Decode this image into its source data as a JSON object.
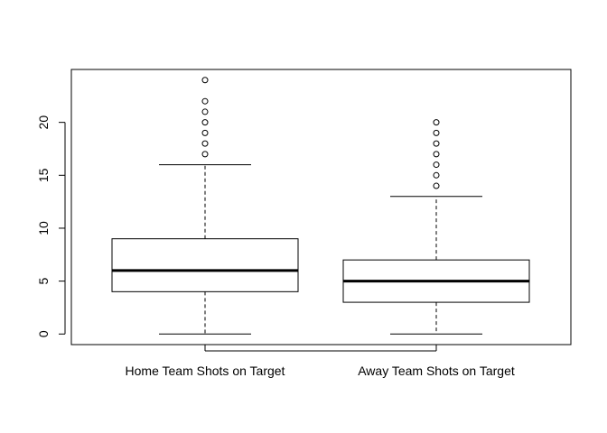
{
  "chart_data": {
    "type": "box",
    "categories": [
      "Home Team Shots on Target",
      "Away Team Shots on Target"
    ],
    "boxes": [
      {
        "name": "Home Team Shots on Target",
        "min": 0,
        "q1": 4,
        "median": 6,
        "q3": 9,
        "max": 16,
        "outliers": [
          17,
          18,
          19,
          20,
          21,
          22,
          24
        ]
      },
      {
        "name": "Away Team Shots on Target",
        "min": 0,
        "q1": 3,
        "median": 5,
        "q3": 7,
        "max": 13,
        "outliers": [
          14,
          15,
          16,
          17,
          18,
          19,
          20
        ]
      }
    ],
    "yticks": [
      "0",
      "5",
      "10",
      "15",
      "20"
    ],
    "ylim": [
      -1,
      25
    ],
    "title": "",
    "xlabel": "",
    "ylabel": "",
    "grid": false
  }
}
